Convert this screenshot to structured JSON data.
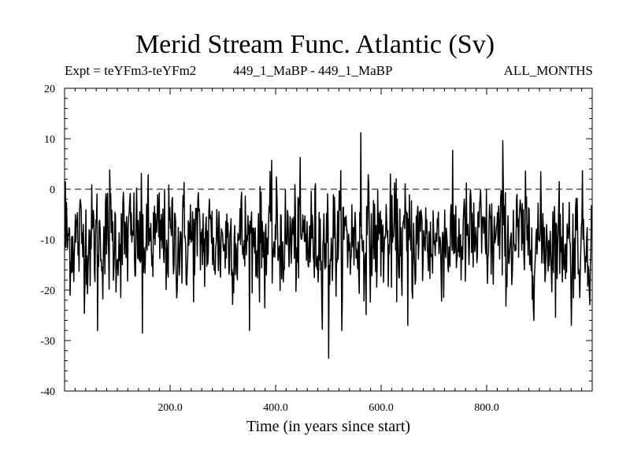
{
  "chart_data": {
    "type": "line",
    "title": "Merid Stream Func. Atlantic (Sv)",
    "subtitle_left": "Expt = teYFm3-teYFm2",
    "subtitle_center": "449_1_MaBP - 449_1_MaBP",
    "subtitle_right": "ALL_MONTHS",
    "xlabel": "Time (in years since start)",
    "ylabel": "",
    "xlim": [
      0,
      1000
    ],
    "ylim": [
      -40,
      20
    ],
    "xticks": [
      200,
      400,
      600,
      800
    ],
    "xtick_labels": [
      "200.0",
      "400.0",
      "600.0",
      "800.0"
    ],
    "yticks": [
      20,
      10,
      0,
      -10,
      -20,
      -30,
      -40
    ],
    "ytick_labels": [
      "20",
      "10",
      "0",
      "-10",
      "-20",
      "-30",
      "-40"
    ],
    "reference_line": {
      "y": 0,
      "style": "dashed"
    },
    "series": [
      {
        "name": "Merid Stream Func. Atlantic",
        "noise_mean": -10,
        "noise_std": 5.5,
        "n_points": 1000,
        "notable_points": [
          {
            "x": 1,
            "y": 1.5
          },
          {
            "x": 62,
            "y": -28
          },
          {
            "x": 85,
            "y": 3.8
          },
          {
            "x": 147,
            "y": -28.5
          },
          {
            "x": 500,
            "y": -33.5
          },
          {
            "x": 561,
            "y": 11.2
          },
          {
            "x": 650,
            "y": -27
          },
          {
            "x": 830,
            "y": 9.6
          },
          {
            "x": 960,
            "y": -27
          }
        ]
      }
    ]
  }
}
